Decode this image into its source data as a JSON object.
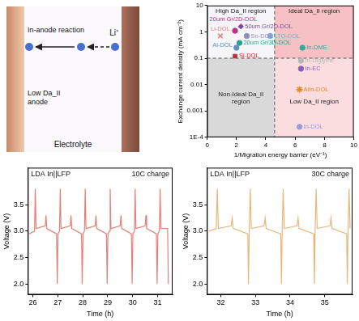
{
  "diagram": {
    "reaction_label": "In-anode reaction",
    "ion_label": "Li⁺",
    "anode_label": "Low Da_II anode",
    "electrolyte_label": "Electrolyte"
  },
  "chart_data": [
    {
      "type": "scatter",
      "x_label": "1/Migration energy barrier (eV⁻¹)",
      "y_label": "Exchange current density (mA cm⁻²)",
      "log": "y",
      "xlim": [
        0,
        10
      ],
      "xticks": [
        0,
        2,
        4,
        6,
        8,
        10
      ],
      "ylim": [
        0.0001,
        10
      ],
      "yticks": [
        {
          "value": 0.0001,
          "label": "1E-4"
        },
        0.001,
        0.01,
        0.1,
        1,
        10
      ],
      "reference_lines": {
        "x": 4.6,
        "y": 0.1
      },
      "regions": {
        "top_left": "High Da_II region",
        "top_right": "Ideal Da_II region",
        "bottom_left": "Non-Ideal Da_II region",
        "bottom_right": "Low Da_II region"
      },
      "series": [
        {
          "name": "Li-DOL",
          "color": "#e88080",
          "marker": "x",
          "x": [
            0.9
          ],
          "values": [
            0.7
          ]
        },
        {
          "name": "20um Gr/2D-DOL",
          "color": "#c0308a",
          "marker": "circle",
          "x": [
            1.9
          ],
          "values": [
            1.1
          ]
        },
        {
          "name": "50um Gr/2D-DOL",
          "color": "#7a4aa0",
          "marker": "diamond",
          "x": [
            2.3
          ],
          "values": [
            1.6
          ]
        },
        {
          "name": "20um Gr/3D-DOL",
          "color": "#2aa090",
          "marker": "circle",
          "x": [
            2.2
          ],
          "values": [
            0.38
          ]
        },
        {
          "name": "Sn-DOL",
          "color": "#9090c0",
          "marker": "circle",
          "x": [
            2.7
          ],
          "values": [
            0.7
          ]
        },
        {
          "name": "LTO-DOL",
          "color": "#7fa8d0",
          "marker": "circle",
          "x": [
            4.3
          ],
          "values": [
            0.7
          ]
        },
        {
          "name": "Al-DOL",
          "color": "#6090c0",
          "marker": "circle",
          "x": [
            2.0
          ],
          "values": [
            0.25
          ]
        },
        {
          "name": "Si-DOL",
          "color": "#c03030",
          "marker": "square",
          "x": [
            1.9
          ],
          "values": [
            0.12
          ]
        },
        {
          "name": "In-DME",
          "color": "#3aa898",
          "marker": "circle",
          "x": [
            6.5
          ],
          "values": [
            0.25
          ]
        },
        {
          "name": "In-Diglyme",
          "color": "#b8b8b8",
          "marker": "circle",
          "x": [
            6.4
          ],
          "values": [
            0.08
          ]
        },
        {
          "name": "In-EC",
          "color": "#8a60b8",
          "marker": "circle",
          "x": [
            6.4
          ],
          "values": [
            0.04
          ]
        },
        {
          "name": "AlIn-DOL",
          "color": "#e88a30",
          "marker": "star",
          "x": [
            6.3
          ],
          "values": [
            0.0065
          ]
        },
        {
          "name": "In-DOL",
          "color": "#9a9ae0",
          "marker": "circle",
          "x": [
            6.3
          ],
          "values": [
            0.00025
          ]
        }
      ]
    },
    {
      "type": "line",
      "annotations": [
        "LDA In||LFP",
        "10C charge"
      ],
      "x_label": "Time (h)",
      "y_label": "Voltage (V)",
      "xlim": [
        25.8,
        31.6
      ],
      "xticks": [
        26,
        27,
        28,
        29,
        30,
        31
      ],
      "ylim": [
        1.8,
        4.2
      ],
      "yticks": [
        {
          "value": 2,
          "label": "2.0"
        },
        2.5,
        {
          "value": 3,
          "label": "3.0"
        },
        3.5
      ],
      "color": "#e38079",
      "x": [
        25.85,
        26.07,
        26.1,
        26.13,
        26.5,
        26.53,
        26.56,
        26.95,
        26.98,
        27.01,
        27.07,
        27.1,
        27.13,
        27.5,
        27.53,
        27.56,
        27.95,
        27.98,
        28.01,
        28.07,
        28.1,
        28.13,
        28.5,
        28.53,
        28.56,
        28.95,
        28.98,
        29.01,
        29.07,
        29.1,
        29.13,
        29.5,
        29.53,
        29.56,
        29.95,
        29.98,
        30.01,
        30.07,
        30.1,
        30.13,
        30.5,
        30.53,
        30.56,
        30.95,
        30.98,
        31.01,
        31.07,
        31.1,
        31.13,
        31.4,
        31.43
      ],
      "values": [
        2.95,
        3.0,
        3.8,
        3.05,
        3.1,
        3.3,
        3.05,
        2.95,
        2.0,
        2.95,
        3.0,
        3.8,
        3.05,
        3.1,
        3.3,
        3.05,
        2.95,
        2.0,
        2.95,
        3.0,
        3.8,
        3.05,
        3.1,
        3.3,
        3.05,
        2.95,
        2.0,
        2.95,
        3.0,
        3.8,
        3.05,
        3.1,
        3.3,
        3.05,
        2.95,
        2.0,
        2.95,
        3.0,
        3.8,
        3.05,
        3.1,
        3.3,
        3.05,
        2.95,
        2.0,
        2.95,
        3.0,
        3.8,
        3.05,
        3.05,
        2.0
      ]
    },
    {
      "type": "line",
      "annotations": [
        "LDA In||LFP",
        "30C charge"
      ],
      "x_label": "Time (h)",
      "y_label": "Voltage (V)",
      "xlim": [
        31.6,
        35.8
      ],
      "xticks": [
        32,
        33,
        34,
        35
      ],
      "ylim": [
        1.8,
        4.2
      ],
      "yticks": [
        {
          "value": 2,
          "label": "2.0"
        },
        2.5,
        {
          "value": 3,
          "label": "3.0"
        },
        3.5
      ],
      "color": "#e9b77a",
      "x": [
        31.65,
        31.87,
        31.9,
        31.93,
        32.3,
        32.33,
        32.36,
        32.78,
        32.8,
        32.82,
        32.85,
        32.88,
        33.25,
        33.28,
        33.31,
        33.73,
        33.75,
        33.77,
        33.8,
        33.83,
        34.2,
        34.23,
        34.26,
        34.68,
        34.7,
        34.72,
        34.75,
        34.78,
        35.15,
        35.18,
        35.21,
        35.63,
        35.65,
        35.67,
        35.7,
        35.73
      ],
      "values": [
        3.0,
        3.05,
        3.8,
        3.05,
        3.1,
        3.25,
        3.05,
        2.95,
        2.0,
        2.95,
        3.8,
        3.05,
        3.1,
        3.25,
        3.05,
        2.95,
        2.0,
        2.95,
        3.8,
        3.05,
        3.1,
        3.25,
        3.05,
        2.95,
        2.0,
        2.95,
        3.8,
        3.05,
        3.1,
        3.25,
        3.05,
        2.95,
        2.0,
        2.95,
        3.8,
        3.05
      ]
    }
  ]
}
